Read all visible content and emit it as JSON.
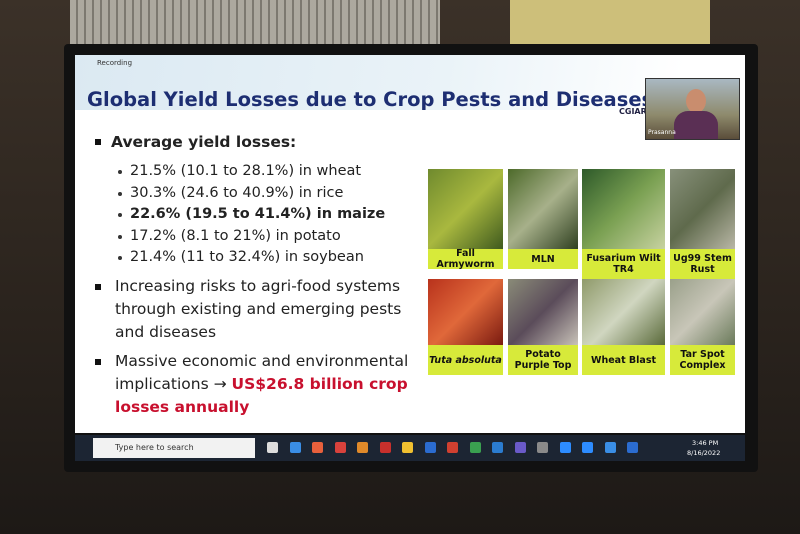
{
  "recording": "Recording",
  "slide": {
    "title": "Global Yield Losses due to Crop Pests and Diseases",
    "logo": "CGIAR",
    "presenter": "Prasanna",
    "heading": "Average yield losses:",
    "losses": [
      {
        "text": "21.5% (10.1 to 28.1%) in wheat",
        "bold": false
      },
      {
        "text": "30.3% (24.6 to 40.9%) in rice",
        "bold": false
      },
      {
        "text": "22.6% (19.5 to 41.4%) in maize",
        "bold": true
      },
      {
        "text": "17.2% (8.1 to 21%) in potato",
        "bold": false
      },
      {
        "text": "21.4% (11 to 32.4%) in soybean",
        "bold": false
      }
    ],
    "risk_point": "Increasing risks to agri-food systems through existing and emerging pests and diseases",
    "impact_point": {
      "text": "Massive economic and environmental implications →",
      "highlight": "US$26.8 billion crop losses annually"
    },
    "images": [
      {
        "caption": "Fall Armyworm",
        "italic": false
      },
      {
        "caption": "MLN",
        "italic": false
      },
      {
        "caption": "Fusarium Wilt TR4",
        "italic": false
      },
      {
        "caption": "Ug99 Stem Rust",
        "italic": false
      },
      {
        "caption": "Tuta absoluta",
        "italic": true
      },
      {
        "caption": "Potato Purple Top",
        "italic": false
      },
      {
        "caption": "Wheat Blast",
        "italic": false
      },
      {
        "caption": "Tar Spot Complex",
        "italic": false
      }
    ]
  },
  "taskbar": {
    "search": "Type here to search",
    "time": "3:46 PM",
    "date": "8/16/2022"
  }
}
